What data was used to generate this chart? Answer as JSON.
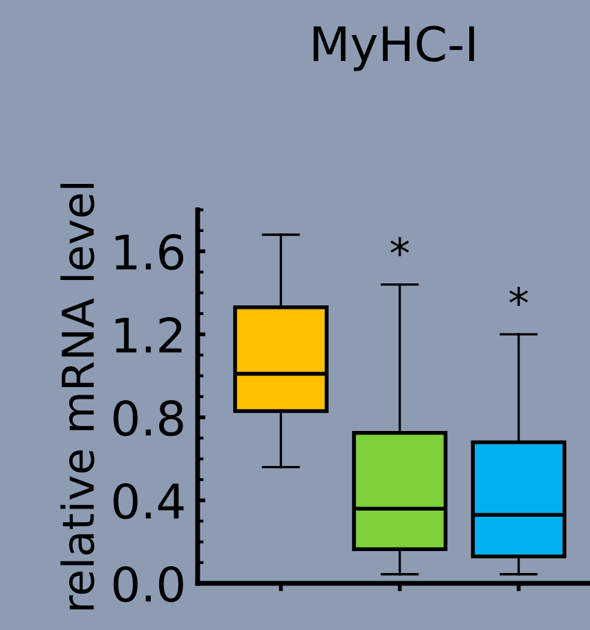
{
  "chart_data": {
    "type": "box",
    "title": "MyHC-I",
    "ylabel": "relative mRNA level",
    "categories": [
      null,
      null,
      null
    ],
    "boxes": [
      {
        "low": 0.56,
        "q1": 0.83,
        "median": 1.01,
        "q3": 1.33,
        "high": 1.68
      },
      {
        "low": 0.044,
        "q1": 0.165,
        "median": 0.36,
        "q3": 0.725,
        "high": 1.44
      },
      {
        "low": 0.044,
        "q1": 0.13,
        "median": 0.33,
        "q3": 0.68,
        "high": 1.2
      }
    ],
    "colors": [
      "#ffc000",
      "#7fd13b",
      "#00b0f0"
    ],
    "ylim": [
      0,
      1.8
    ],
    "yticks": [
      {
        "value": 0,
        "label": "0.0"
      },
      1.6,
      1.2,
      0.8,
      0.4
    ],
    "annotations": [
      "*",
      "*"
    ],
    "tick_labels": "y",
    "grid": false,
    "legend": false
  }
}
